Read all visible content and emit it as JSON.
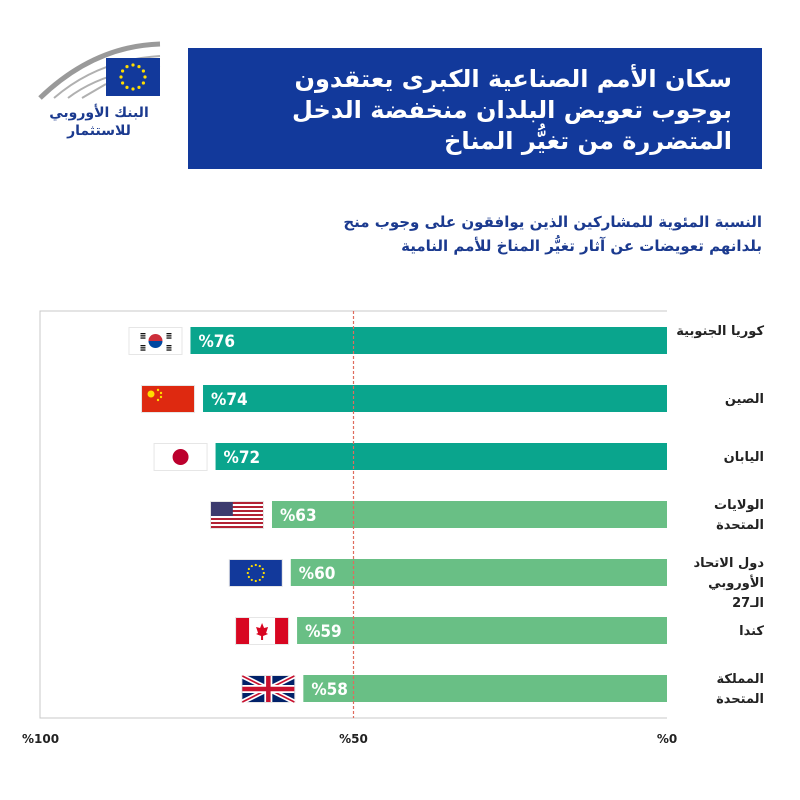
{
  "logo": {
    "name_line1": "البنك الأوروبي",
    "name_line2": "للاستثمار"
  },
  "colors": {
    "bar_dark": "#0aa58d",
    "bar_light": "#69bf85",
    "title_bg": "#12399b",
    "reference_line": "#e06b5e",
    "frame": "#c8c8c8"
  },
  "chart_data": {
    "type": "bar",
    "orientation": "horizontal",
    "title": "سكان الأمم الصناعية الكبرى يعتقدون بوجوب تعويض البلدان منخفضة الدخل المتضررة من تغيُّر المناخ",
    "subtitle": "النسبة المئوية للمشاركين الذين يوافقون على وجوب منح بلدانهم تعويضات عن آثار تغيُّر المناخ للأمم النامية",
    "categories": [
      "كوريا الجنوبية",
      "الصين",
      "اليابان",
      "الولايات المتحدة",
      "دول الاتحاد الأوروبي الـ27",
      "كندا",
      "المملكة المتحدة"
    ],
    "values": [
      76,
      74,
      72,
      63,
      60,
      59,
      58
    ],
    "value_labels": [
      "%76",
      "%74",
      "%72",
      "%63",
      "%60",
      "%59",
      "%58"
    ],
    "flags": [
      "south-korea-flag",
      "china-flag",
      "japan-flag",
      "usa-flag",
      "eu-flag",
      "canada-flag",
      "uk-flag"
    ],
    "xlim": [
      0,
      100
    ],
    "x_direction": "right-to-left",
    "x_ticks": [
      "%0",
      "%50",
      "%100"
    ],
    "reference_line": 50,
    "grid": false
  }
}
